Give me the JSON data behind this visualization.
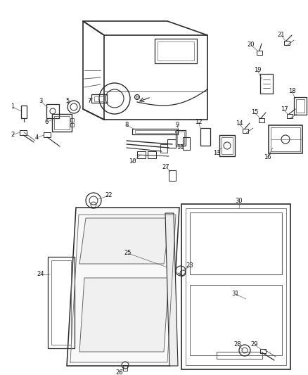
{
  "background_color": "#ffffff",
  "figsize": [
    4.38,
    5.33
  ],
  "dpi": 100
}
